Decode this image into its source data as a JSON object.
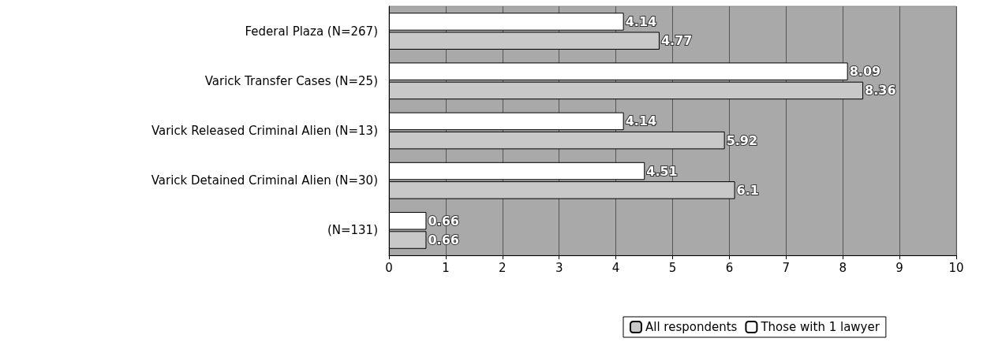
{
  "chart_data": {
    "type": "bar",
    "orientation": "horizontal",
    "categories": [
      "Federal Plaza (N=267)",
      "Varick Transfer Cases (N=25)",
      "Varick Released Criminal Alien (N=13)",
      "Varick Detained Criminal Alien (N=30)",
      "(N=131)"
    ],
    "series": [
      {
        "name": "All respondents",
        "color": "#c8c8c8",
        "values": [
          4.77,
          8.36,
          5.92,
          6.1,
          0.66
        ]
      },
      {
        "name": "Those with 1 lawyer",
        "color": "#ffffff",
        "values": [
          4.14,
          8.09,
          4.14,
          4.51,
          0.66
        ]
      }
    ],
    "xlim": [
      0,
      10
    ],
    "xticks": [
      0,
      1,
      2,
      3,
      4,
      5,
      6,
      7,
      8,
      9,
      10
    ],
    "grid": "x",
    "legend": "bottom",
    "data_labels": true
  }
}
